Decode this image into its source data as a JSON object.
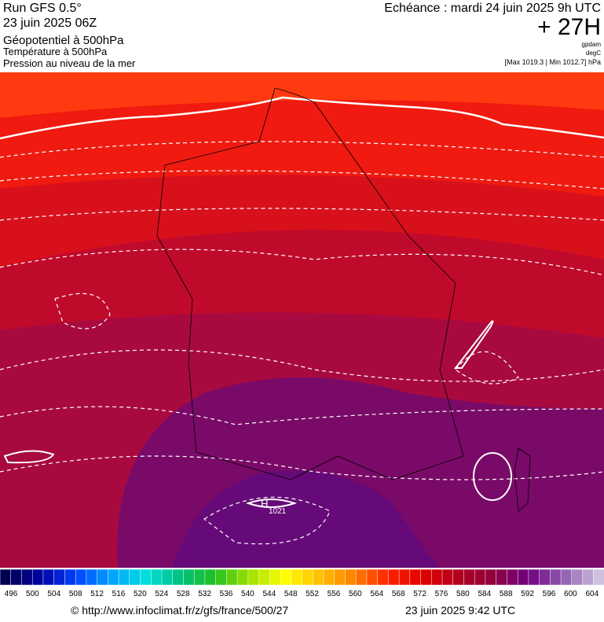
{
  "header": {
    "run": "Run GFS 0.5°",
    "run_date": "23 juin 2025 06Z",
    "title": "Géopotentiel à 500hPa",
    "subtitle_1": "Température à 500hPa",
    "subtitle_2": "Pression au niveau de la mer",
    "valid": "Echéance : mardi 24 juin 2025 9h UTC",
    "lead": "+ 27H",
    "unit_1": "gpdam",
    "unit_2": "degC",
    "extremes": "[Max 1019.3 | Min 1012.7] hPa"
  },
  "map": {
    "high_label": "H",
    "high_value": "1021"
  },
  "colorbar": {
    "labels": [
      496,
      500,
      504,
      508,
      512,
      516,
      520,
      524,
      528,
      532,
      536,
      540,
      544,
      548,
      552,
      556,
      560,
      564,
      568,
      572,
      576,
      580,
      584,
      588,
      592,
      596,
      600,
      604
    ],
    "colors": [
      "#000050",
      "#0000a0",
      "#0040ff",
      "#00a0ff",
      "#00e0e0",
      "#00c080",
      "#20c020",
      "#a0e000",
      "#ffff00",
      "#ffc000",
      "#ff8000",
      "#ff2000",
      "#e00000",
      "#b00020",
      "#900040",
      "#700080",
      "#9060b0",
      "#d0c0e0"
    ]
  },
  "footer": {
    "source": "© http://www.infoclimat.fr/z/gfs/france/500/27",
    "generated": "23 juin 2025  9:42 UTC"
  }
}
